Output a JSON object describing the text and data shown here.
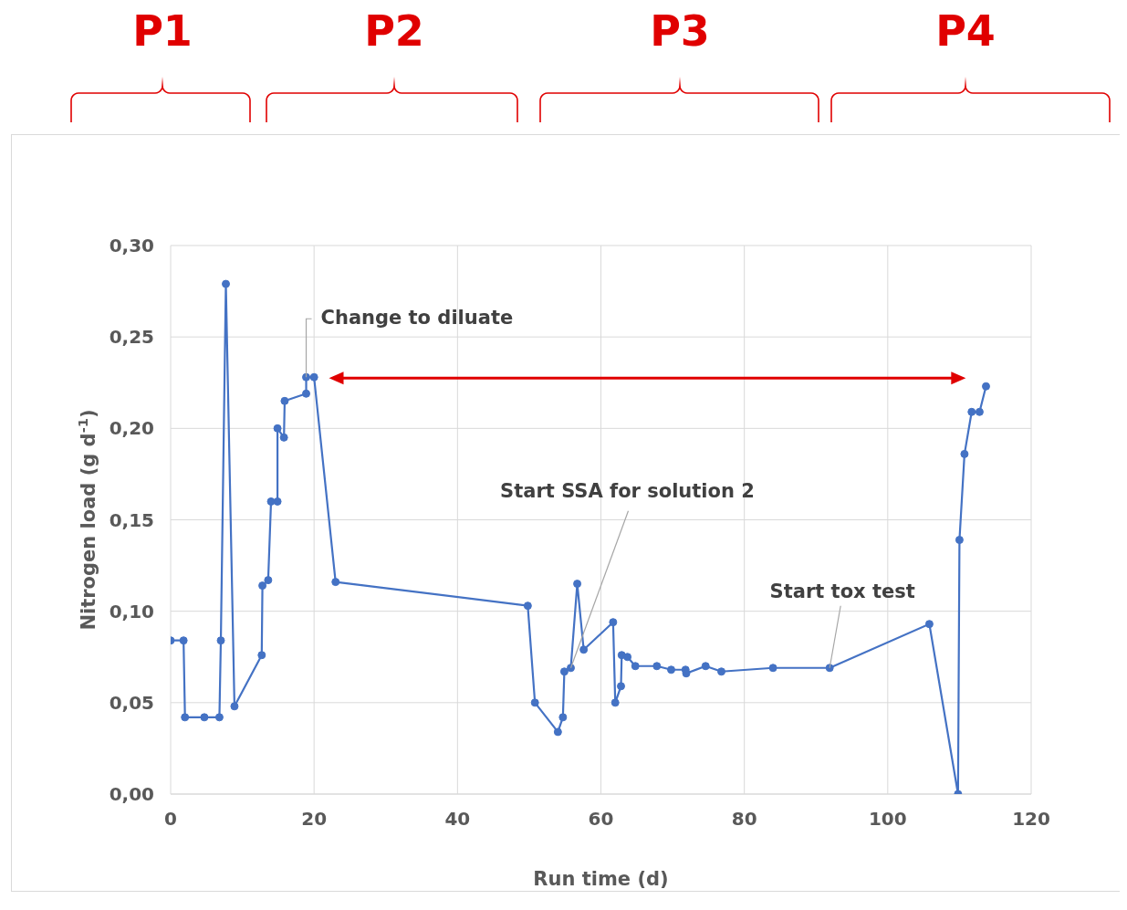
{
  "chart_data": {
    "type": "line",
    "xlabel": "Run time (d)",
    "ylabel": "Nitrogen load  (g d$^{-1}$)",
    "x": [
      0,
      1.8,
      2,
      4.7,
      6.8,
      7,
      7.7,
      8.9,
      12.7,
      12.8,
      13.6,
      14,
      14.9,
      14.9,
      15.8,
      15.9,
      18.9,
      18.9,
      20,
      23,
      49.8,
      50.8,
      54,
      54.7,
      54.9,
      55.8,
      56.7,
      57.6,
      61.7,
      62,
      62.8,
      62.9,
      63.7,
      64.8,
      67.8,
      69.8,
      71.8,
      71.9,
      74.6,
      76.8,
      84,
      91.9,
      105.8,
      109.8,
      110,
      110.7,
      111.7,
      112.8,
      113.7
    ],
    "series": [
      {
        "color": "#4472c4",
        "values": [
          0.084,
          0.084,
          0.042,
          0.042,
          0.042,
          0.084,
          0.279,
          0.048,
          0.076,
          0.114,
          0.117,
          0.16,
          0.16,
          0.2,
          0.195,
          0.215,
          0.219,
          0.228,
          0.228,
          0.116,
          0.103,
          0.05,
          0.034,
          0.042,
          0.067,
          0.069,
          0.115,
          0.079,
          0.094,
          0.05,
          0.059,
          0.076,
          0.075,
          0.07,
          0.07,
          0.068,
          0.068,
          0.066,
          0.07,
          0.067,
          0.069,
          0.069,
          0.093,
          0,
          0.139,
          0.186,
          0.209,
          0.209,
          0.223
        ]
      }
    ],
    "xlim": [
      0,
      120
    ],
    "xticks": [
      0,
      20,
      40,
      60,
      80,
      100,
      120
    ],
    "ylim": [
      0,
      0.3
    ],
    "yticks": [
      {
        "value": 0,
        "label": "0,00"
      },
      {
        "value": 0.05,
        "label": "0,05"
      },
      {
        "value": 0.1,
        "label": "0,10"
      },
      {
        "value": 0.15,
        "label": "0,15"
      },
      {
        "value": 0.2,
        "label": "0,20"
      },
      {
        "value": 0.25,
        "label": "0,25"
      },
      {
        "value": 0.3,
        "label": "0,30"
      }
    ],
    "grid": true,
    "marker": "circle",
    "annotations": [
      {
        "text": "Change to diluate",
        "x": 18.9,
        "y": 0.228
      },
      {
        "text": "Start SSA for solution 2",
        "x": 55.8,
        "y": 0.069
      },
      {
        "text": "Start tox test",
        "x": 91.9,
        "y": 0.069
      },
      "P1",
      "P2",
      "P3",
      "P4"
    ]
  }
}
